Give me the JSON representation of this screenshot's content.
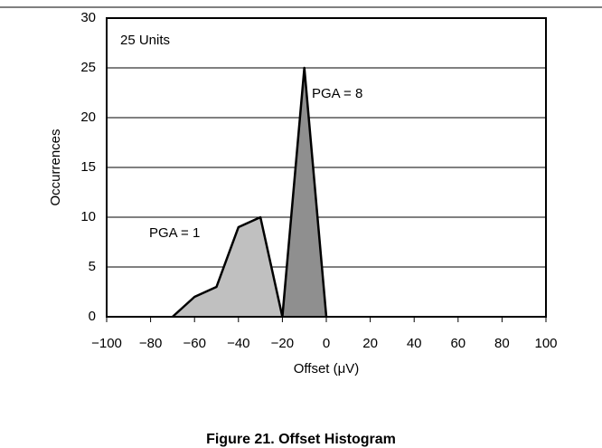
{
  "chart_data": {
    "type": "area",
    "title": "Figure 21. Offset Histogram",
    "xlabel": "Offset (μV)",
    "ylabel": "Occurrences",
    "annotation": "25 Units",
    "xlim": [
      -100,
      100
    ],
    "ylim": [
      0,
      30
    ],
    "xticks": [
      {
        "value": -100,
        "label": "−100"
      },
      {
        "value": -80,
        "label": "−80"
      },
      {
        "value": -60,
        "label": "−60"
      },
      {
        "value": -40,
        "label": "−40"
      },
      {
        "value": -20,
        "label": "−20"
      },
      0,
      20,
      40,
      60,
      80,
      100
    ],
    "yticks": [
      0,
      5,
      10,
      15,
      20,
      25,
      30
    ],
    "grid": true,
    "series": [
      {
        "name": "PGA = 1",
        "color": "#c0c0c0",
        "x": [
          -70,
          -60,
          -50,
          -40,
          -30,
          -20
        ],
        "values": [
          0,
          2,
          3,
          9,
          10,
          0
        ]
      },
      {
        "name": "PGA = 8",
        "color": "#8f8f8f",
        "x": [
          -20,
          -10,
          0
        ],
        "values": [
          0,
          25,
          0
        ]
      }
    ]
  }
}
